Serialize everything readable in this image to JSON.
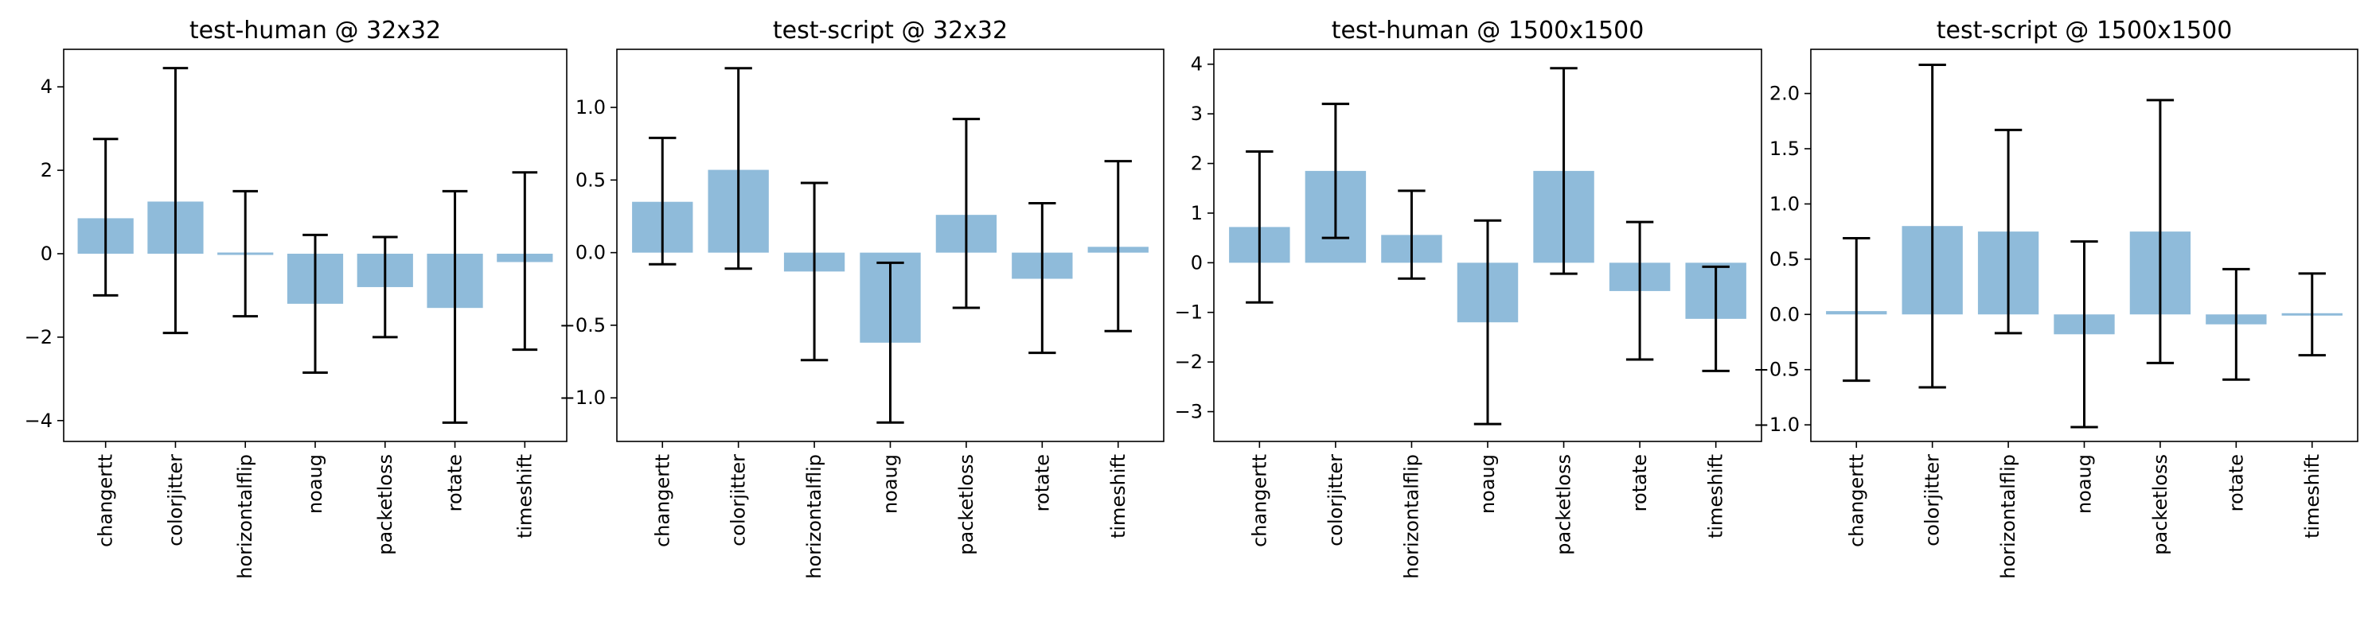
{
  "chart_data": [
    {
      "type": "bar",
      "title": "test-human @ 32x32",
      "categories": [
        "changertt",
        "colorjitter",
        "horizontalflip",
        "noaug",
        "packetloss",
        "rotate",
        "timeshift"
      ],
      "values": [
        0.85,
        1.25,
        0.0,
        -1.2,
        -0.8,
        -1.3,
        -0.2
      ],
      "error_low": [
        -1.0,
        -1.9,
        -1.5,
        -2.85,
        -2.0,
        -4.05,
        -2.3
      ],
      "error_high": [
        2.75,
        4.45,
        1.5,
        0.45,
        0.4,
        1.5,
        1.95
      ],
      "yticks": [
        -4,
        -2,
        0,
        2,
        4
      ],
      "ytick_labels": [
        "−4",
        "−2",
        "0",
        "2",
        "4"
      ],
      "ylim": [
        -4.5,
        4.9
      ],
      "xlabel": "",
      "ylabel": ""
    },
    {
      "type": "bar",
      "title": "test-script @ 32x32",
      "categories": [
        "changertt",
        "colorjitter",
        "horizontalflip",
        "noaug",
        "packetloss",
        "rotate",
        "timeshift"
      ],
      "values": [
        0.35,
        0.57,
        -0.13,
        -0.62,
        0.26,
        -0.18,
        0.04
      ],
      "error_low": [
        -0.08,
        -0.11,
        -0.74,
        -1.17,
        -0.38,
        -0.69,
        -0.54
      ],
      "error_high": [
        0.79,
        1.27,
        0.48,
        -0.07,
        0.92,
        0.34,
        0.63
      ],
      "yticks": [
        -1.0,
        -0.5,
        0.0,
        0.5,
        1.0
      ],
      "ytick_labels": [
        "−1.0",
        "−0.5",
        "0.0",
        "0.5",
        "1.0"
      ],
      "ylim": [
        -1.3,
        1.4
      ],
      "xlabel": "",
      "ylabel": ""
    },
    {
      "type": "bar",
      "title": "test-human @ 1500x1500",
      "categories": [
        "changertt",
        "colorjitter",
        "horizontalflip",
        "noaug",
        "packetloss",
        "rotate",
        "timeshift"
      ],
      "values": [
        0.72,
        1.85,
        0.56,
        -1.2,
        1.85,
        -0.57,
        -1.13
      ],
      "error_low": [
        -0.8,
        0.5,
        -0.32,
        -3.25,
        -0.22,
        -1.95,
        -2.18
      ],
      "error_high": [
        2.24,
        3.2,
        1.45,
        0.85,
        3.92,
        0.82,
        -0.08
      ],
      "yticks": [
        -3,
        -2,
        -1,
        0,
        1,
        2,
        3,
        4
      ],
      "ytick_labels": [
        "−3",
        "−2",
        "−1",
        "0",
        "1",
        "2",
        "3",
        "4"
      ],
      "ylim": [
        -3.6,
        4.3
      ],
      "xlabel": "",
      "ylabel": ""
    },
    {
      "type": "bar",
      "title": "test-script @ 1500x1500",
      "categories": [
        "changertt",
        "colorjitter",
        "horizontalflip",
        "noaug",
        "packetloss",
        "rotate",
        "timeshift"
      ],
      "values": [
        0.03,
        0.8,
        0.75,
        -0.18,
        0.75,
        -0.09,
        0.0
      ],
      "error_low": [
        -0.6,
        -0.66,
        -0.17,
        -1.02,
        -0.44,
        -0.59,
        -0.37
      ],
      "error_high": [
        0.69,
        2.26,
        1.67,
        0.66,
        1.94,
        0.41,
        0.37
      ],
      "yticks": [
        -1.0,
        -0.5,
        0.0,
        0.5,
        1.0,
        1.5,
        2.0
      ],
      "ytick_labels": [
        "−1.0",
        "−0.5",
        "0.0",
        "0.5",
        "1.0",
        "1.5",
        "2.0"
      ],
      "ylim": [
        -1.15,
        2.4
      ],
      "xlabel": "",
      "ylabel": ""
    }
  ],
  "colors": {
    "bar": "#8fbbda",
    "error": "#000000",
    "axes": "#000000"
  }
}
